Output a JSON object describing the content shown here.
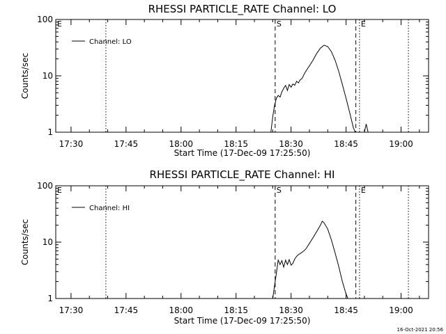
{
  "chart_data": [
    {
      "type": "line",
      "title": "RHESSI PARTICLE_RATE Channel: LO",
      "xlabel": "Start Time (17-Dec-09 17:25:50)",
      "ylabel": "Counts/sec",
      "yscale": "log",
      "ylim": [
        1,
        100
      ],
      "xlim": [
        "17:25:50",
        "19:07:30"
      ],
      "x_tick_labels": [
        "17:30",
        "17:45",
        "18:00",
        "18:15",
        "18:30",
        "18:45",
        "19:00"
      ],
      "y_tick_labels": [
        "1",
        "10",
        "100"
      ],
      "legend": {
        "position": "top-left"
      },
      "markers": [
        {
          "time": "17:39:30",
          "label": "",
          "style": "dotted"
        },
        {
          "time": "18:25:40",
          "label": "S",
          "style": "dashed"
        },
        {
          "time": "18:47:40",
          "label": "",
          "style": "dashed"
        },
        {
          "time": "18:48:40",
          "label": "E",
          "style": "dotted"
        },
        {
          "time": "19:02:00",
          "label": "",
          "style": "dotted"
        }
      ],
      "edge_marker_label": "E",
      "series": [
        {
          "name": "Channel: LO",
          "x": [
            "18:24:30",
            "18:25:00",
            "18:25:30",
            "18:26:00",
            "18:26:30",
            "18:27:00",
            "18:27:30",
            "18:28:00",
            "18:28:30",
            "18:29:00",
            "18:29:30",
            "18:30:00",
            "18:30:30",
            "18:31:00",
            "18:31:30",
            "18:32:00",
            "18:32:30",
            "18:33:00",
            "18:33:30",
            "18:34:00",
            "18:35:00",
            "18:36:00",
            "18:37:00",
            "18:38:00",
            "18:39:00",
            "18:40:00",
            "18:41:00",
            "18:42:00",
            "18:43:00",
            "18:44:00",
            "18:45:00",
            "18:46:00",
            "18:47:00",
            "18:47:30",
            "18:48:00",
            "18:48:30",
            "18:49:00",
            "18:49:30",
            "18:50:00",
            "18:50:30",
            "18:51:00"
          ],
          "y": [
            1.0,
            1.9,
            3.0,
            4.0,
            4.5,
            4.2,
            5.2,
            6.0,
            6.8,
            5.5,
            7.0,
            6.3,
            7.2,
            6.8,
            8.0,
            7.5,
            8.5,
            9.0,
            10.5,
            12.0,
            15.0,
            19.0,
            25.0,
            31.0,
            35.0,
            33.0,
            27.0,
            19.0,
            12.0,
            7.0,
            4.0,
            2.2,
            1.2,
            1.0,
            null,
            null,
            1.0,
            null,
            1.0,
            1.4,
            1.0
          ]
        }
      ]
    },
    {
      "type": "line",
      "title": "RHESSI PARTICLE_RATE Channel: HI",
      "xlabel": "Start Time (17-Dec-09 17:25:50)",
      "ylabel": "Counts/sec",
      "yscale": "log",
      "ylim": [
        1,
        100
      ],
      "xlim": [
        "17:25:50",
        "19:07:30"
      ],
      "x_tick_labels": [
        "17:30",
        "17:45",
        "18:00",
        "18:15",
        "18:30",
        "18:45",
        "19:00"
      ],
      "y_tick_labels": [
        "1",
        "10",
        "100"
      ],
      "legend": {
        "position": "top-left"
      },
      "markers": [
        {
          "time": "17:39:30",
          "label": "",
          "style": "dotted"
        },
        {
          "time": "18:25:40",
          "label": "S",
          "style": "dashed"
        },
        {
          "time": "18:47:40",
          "label": "",
          "style": "dashed"
        },
        {
          "time": "18:48:40",
          "label": "E",
          "style": "dotted"
        },
        {
          "time": "19:02:00",
          "label": "",
          "style": "dotted"
        }
      ],
      "edge_marker_label": "E",
      "series": [
        {
          "name": "Channel: HI",
          "x": [
            "18:25:00",
            "18:25:30",
            "18:26:00",
            "18:26:30",
            "18:27:00",
            "18:27:30",
            "18:28:00",
            "18:28:30",
            "18:29:00",
            "18:29:30",
            "18:30:00",
            "18:30:30",
            "18:31:00",
            "18:31:30",
            "18:32:00",
            "18:33:00",
            "18:34:00",
            "18:35:00",
            "18:36:00",
            "18:37:00",
            "18:38:00",
            "18:38:30",
            "18:39:00",
            "18:40:00",
            "18:41:00",
            "18:42:00",
            "18:43:00",
            "18:44:00",
            "18:45:00",
            "18:45:30"
          ],
          "y": [
            1.0,
            1.7,
            2.8,
            4.8,
            4.0,
            4.7,
            3.6,
            4.8,
            4.0,
            4.9,
            3.9,
            4.2,
            5.0,
            5.6,
            6.0,
            6.6,
            7.5,
            9.5,
            12.0,
            15.5,
            20.0,
            23.5,
            22.0,
            17.0,
            11.0,
            6.5,
            3.7,
            2.0,
            1.2,
            1.0
          ]
        }
      ]
    }
  ],
  "timestamp": "16-Oct-2021 20:56"
}
